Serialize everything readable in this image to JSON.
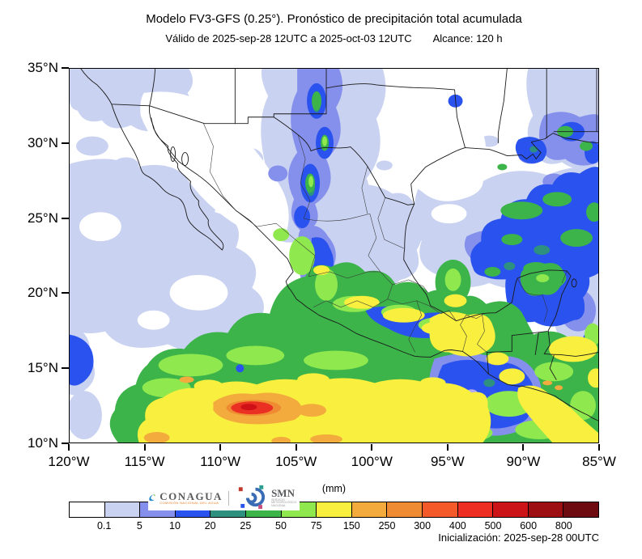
{
  "header": {
    "title": "Modelo FV3-GFS (0.25°). Pronóstico de precipitación total acumulada",
    "subtitle_valid": "Válido de 2025-sep-28 12UTC a 2025-oct-03 12UTC",
    "subtitle_range": "Alcance: 120 h"
  },
  "map": {
    "y_axis": {
      "labels": [
        "35°N",
        "30°N",
        "25°N",
        "20°N",
        "15°N",
        "10°N"
      ]
    },
    "x_axis": {
      "labels": [
        "120°W",
        "115°W",
        "110°W",
        "105°W",
        "100°W",
        "95°W",
        "90°W",
        "85°W"
      ]
    }
  },
  "colorbar": {
    "units_label": "(mm)",
    "tick_labels": [
      "0.1",
      "5",
      "10",
      "20",
      "25",
      "50",
      "75",
      "150",
      "250",
      "300",
      "400",
      "500",
      "600",
      "800"
    ],
    "colors": [
      "#ffffff",
      "#c9d2f1",
      "#8590ec",
      "#2a52ee",
      "#2e9180",
      "#3cb44a",
      "#8fe84d",
      "#f8ef3e",
      "#f2ab3c",
      "#ef8c33",
      "#f4592a",
      "#ee2e22",
      "#cc1418",
      "#9c0e12",
      "#6d0b10"
    ]
  },
  "footer": {
    "init_label": "Inicialización: 2025-sep-28 00UTC"
  },
  "logos": {
    "conagua": {
      "icon": "conagua-wave-icon",
      "name": "CONAGUA",
      "tagline": "COMISIÓN NACIONAL DEL AGUA"
    },
    "smn": {
      "icon": "smn-glyph-icon",
      "name": "SMN",
      "tagline_lines": "SERVICIO METEOROLÓGICO NACIONAL"
    }
  }
}
